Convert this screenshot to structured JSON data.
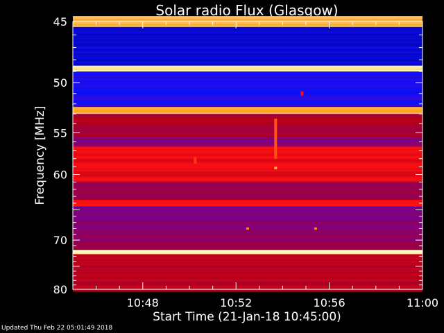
{
  "chart_data": {
    "type": "heatmap",
    "title": "Solar radio Flux (Glasgow)",
    "xlabel": "Start Time (21-Jan-18 10:45:00)",
    "ylabel": "Frequency [MHz]",
    "x_ticks": [
      "10:48",
      "10:52",
      "10:56",
      "11:00"
    ],
    "y_ticks": [
      "45",
      "50",
      "55",
      "60",
      "70",
      "80"
    ],
    "y_tick_values": [
      45,
      50,
      55,
      60,
      70,
      80
    ],
    "y_scale": "reciprocal",
    "ylim": [
      45,
      80
    ],
    "xlim": [
      "10:45",
      "11:00"
    ],
    "colormap": [
      "#000000",
      "#0000a0",
      "#1010ff",
      "#800080",
      "#b00020",
      "#ff1010",
      "#ffa020",
      "#ffffc0"
    ],
    "intensity_bands": [
      {
        "freq_from": 44.6,
        "freq_to": 45.4,
        "level": 0.9
      },
      {
        "freq_from": 45.4,
        "freq_to": 48.5,
        "level": 0.22
      },
      {
        "freq_from": 48.5,
        "freq_to": 49.0,
        "level": 0.98
      },
      {
        "freq_from": 49.0,
        "freq_to": 52.3,
        "level": 0.3
      },
      {
        "freq_from": 52.3,
        "freq_to": 53.0,
        "level": 0.88
      },
      {
        "freq_from": 53.0,
        "freq_to": 55.5,
        "level": 0.55
      },
      {
        "freq_from": 55.5,
        "freq_to": 56.5,
        "level": 0.45
      },
      {
        "freq_from": 56.5,
        "freq_to": 61.0,
        "level": 0.68
      },
      {
        "freq_from": 61.0,
        "freq_to": 63.5,
        "level": 0.52
      },
      {
        "freq_from": 63.5,
        "freq_to": 64.5,
        "level": 0.72
      },
      {
        "freq_from": 64.5,
        "freq_to": 66.5,
        "level": 0.42
      },
      {
        "freq_from": 66.5,
        "freq_to": 70.5,
        "level": 0.47
      },
      {
        "freq_from": 70.5,
        "freq_to": 71.8,
        "level": 0.5
      },
      {
        "freq_from": 71.8,
        "freq_to": 72.6,
        "level": 0.97
      },
      {
        "freq_from": 72.6,
        "freq_to": 80.5,
        "level": 0.58
      }
    ],
    "bursts": [
      {
        "time": "10:53:42",
        "freq_from": 53.5,
        "freq_to": 58.0,
        "level": 0.78
      },
      {
        "time": "10:53:42",
        "freq_from": 59.0,
        "freq_to": 59.3,
        "level": 0.9
      },
      {
        "time": "10:50:15",
        "freq_from": 57.8,
        "freq_to": 58.6,
        "level": 0.75
      },
      {
        "time": "10:54:50",
        "freq_from": 50.8,
        "freq_to": 51.2,
        "level": 0.7
      },
      {
        "time": "10:52:30",
        "freq_from": 67.8,
        "freq_to": 68.2,
        "level": 0.82
      },
      {
        "time": "10:55:25",
        "freq_from": 67.8,
        "freq_to": 68.2,
        "level": 0.82
      }
    ]
  },
  "footer": {
    "updated": "Updated Thu Feb 22 05:01:49 2018"
  }
}
